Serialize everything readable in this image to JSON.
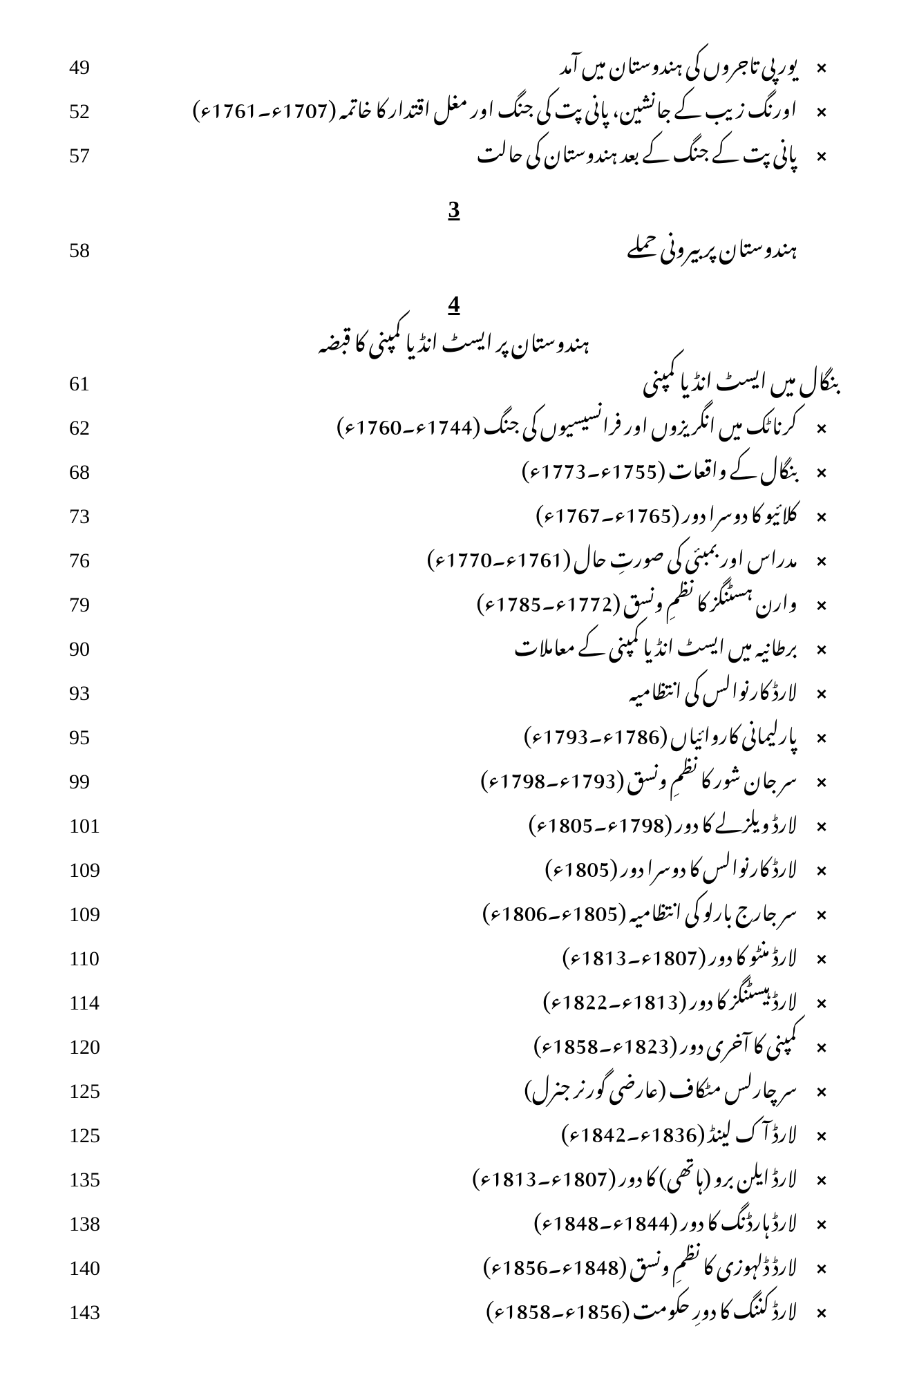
{
  "top_entries": [
    {
      "bullet": "×",
      "text": "یورپی تاجروں کی ہندوستان میں آمد",
      "page": "49"
    },
    {
      "bullet": "×",
      "text": "اورنگ زیب کے جانشین، پانی پت کی جنگ اور مغل اقتدار کا خاتمہ (1707ء۔1761ء)",
      "page": "52"
    },
    {
      "bullet": "×",
      "text": "پانی پت کے جنگ کے بعد ہندوستان کی حالت",
      "page": "57"
    }
  ],
  "chapter3": {
    "num": "3",
    "title": "ہندوستان پر بیرونی حملے",
    "page": "58"
  },
  "chapter4": {
    "num": "4",
    "title": "ہندوستان پر ایسٹ انڈیا کمپنی کا قبضہ",
    "section_heading": {
      "text": "بنگال میں ایسٹ انڈیا کمپنی",
      "page": "61"
    },
    "entries": [
      {
        "bullet": "×",
        "text": "کرناٹک میں انگریزوں اور فرانسیسیوں کی جنگ (1744ء۔1760ء)",
        "page": "62"
      },
      {
        "bullet": "×",
        "text": "بنگال کے واقعات (1755ء۔1773ء)",
        "page": "68"
      },
      {
        "bullet": "×",
        "text": "کلائیو کا دوسرا دور (1765ء۔1767ء)",
        "page": "73"
      },
      {
        "bullet": "×",
        "text": "مدراس اور بمبئی کی صورتِ حال (1761ء۔1770ء)",
        "page": "76"
      },
      {
        "bullet": "×",
        "text": "وارن ہسٹنگز کا نظمِ ونسق (1772ء۔1785ء)",
        "page": "79"
      },
      {
        "bullet": "×",
        "text": "برطانیہ میں ایسٹ انڈیا کمپنی کے معاملات",
        "page": "90"
      },
      {
        "bullet": "×",
        "text": "لارڈ کارنوالس کی انتظامیہ",
        "page": "93"
      },
      {
        "bullet": "×",
        "text": "پارلیمانی کاروائیاں (1786ء۔1793ء)",
        "page": "95"
      },
      {
        "bullet": "×",
        "text": "سر جان شور کا نظمِ ونسق (1793ء۔1798ء)",
        "page": "99"
      },
      {
        "bullet": "×",
        "text": "لارڈ ویلزلے کا دور (1798ء۔1805ء)",
        "page": "101"
      },
      {
        "bullet": "×",
        "text": "لارڈ کارنوالس کا دوسرا دور (1805ء)",
        "page": "109"
      },
      {
        "bullet": "×",
        "text": "سر جارج بارلو کی انتظامیہ (1805ء۔1806ء)",
        "page": "109"
      },
      {
        "bullet": "×",
        "text": "لارڈ منٹو کا دور (1807ء۔1813ء)",
        "page": "110"
      },
      {
        "bullet": "×",
        "text": "لارڈ ہیسٹنگز کا دور (1813ء۔1822ء)",
        "page": "114"
      },
      {
        "bullet": "×",
        "text": "کمپنی کا آخری دور (1823ء۔1858ء)",
        "page": "120"
      },
      {
        "bullet": "×",
        "text": "سر چارلس مٹکاف (عارضی گورنر جنرل)",
        "page": "125"
      },
      {
        "bullet": "×",
        "text": "لارڈ آک لینڈ (1836ء۔1842ء)",
        "page": "125"
      },
      {
        "bullet": "×",
        "text": "لارڈ ایلن برو (ہاتھی) کا دور (1807ء۔1813ء)",
        "page": "135"
      },
      {
        "bullet": "×",
        "text": "لارڈ ہارڈنگ کا دور (1844ء۔1848ء)",
        "page": "138"
      },
      {
        "bullet": "×",
        "text": "لارڈ ڈلہوزی کا نظمِ ونسق (1848ء۔1856ء)",
        "page": "140"
      },
      {
        "bullet": "×",
        "text": "لارڈ کننگ کا دورِ حکومت (1856ء۔1858ء)",
        "page": "143"
      }
    ]
  }
}
